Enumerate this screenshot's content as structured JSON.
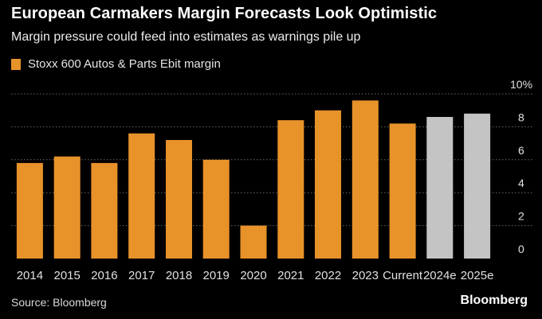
{
  "header": {
    "title": "European Carmakers Margin Forecasts Look Optimistic",
    "subtitle": "Margin pressure could feed into estimates as warnings pile up"
  },
  "legend": {
    "label": "Stoxx 600 Autos & Parts Ebit margin"
  },
  "footer": {
    "source": "Source: Bloomberg",
    "brand": "Bloomberg"
  },
  "colors": {
    "actual": "#e8922a",
    "estimate": "#c4c4c4",
    "grid": "#6a6a6a",
    "background": "#000000"
  },
  "chart_data": {
    "type": "bar",
    "title": "European Carmakers Margin Forecasts Look Optimistic",
    "subtitle": "Margin pressure could feed into estimates as warnings pile up",
    "xlabel": "",
    "ylabel": "",
    "categories": [
      "2014",
      "2015",
      "2016",
      "2017",
      "2018",
      "2019",
      "2020",
      "2021",
      "2022",
      "2023",
      "Current",
      "2024e",
      "2025e"
    ],
    "series": [
      {
        "name": "Stoxx 600 Autos & Parts Ebit margin",
        "values": [
          5.8,
          6.2,
          5.8,
          7.6,
          7.2,
          6.0,
          2.0,
          8.4,
          9.0,
          9.6,
          8.2,
          8.6,
          8.8
        ]
      }
    ],
    "estimate_categories": [
      "2024e",
      "2025e"
    ],
    "ylim": [
      0,
      10
    ],
    "y_ticks": [
      "0",
      "2",
      "4",
      "6",
      "8",
      "10%"
    ],
    "y_axis_position": "right",
    "grid": true,
    "legend_position": "top-left"
  }
}
